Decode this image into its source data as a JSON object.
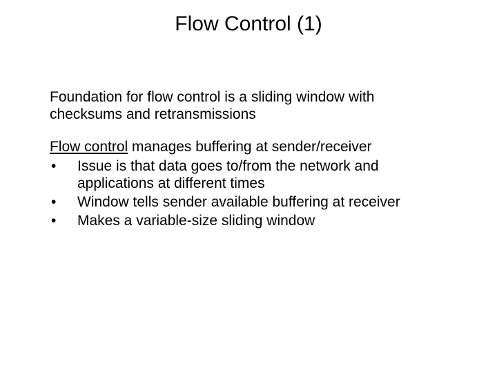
{
  "slide": {
    "title": "Flow Control (1)",
    "title_fontsize": 30,
    "body_fontsize": 21,
    "background_color": "#ffffff",
    "text_color": "#000000",
    "paragraph1": "Foundation for flow control is a sliding window with checksums and retransmissions",
    "section2": {
      "lead_underlined": "Flow control",
      "lead_rest": " manages buffering at sender/receiver",
      "bullets": [
        {
          "mark": "•",
          "text": "Issue is that data goes to/from the network and applications at different times"
        },
        {
          "mark": "•",
          "text": "Window tells sender available buffering at receiver"
        },
        {
          "mark": "•",
          "text": "Makes a variable-size sliding window"
        }
      ]
    }
  }
}
